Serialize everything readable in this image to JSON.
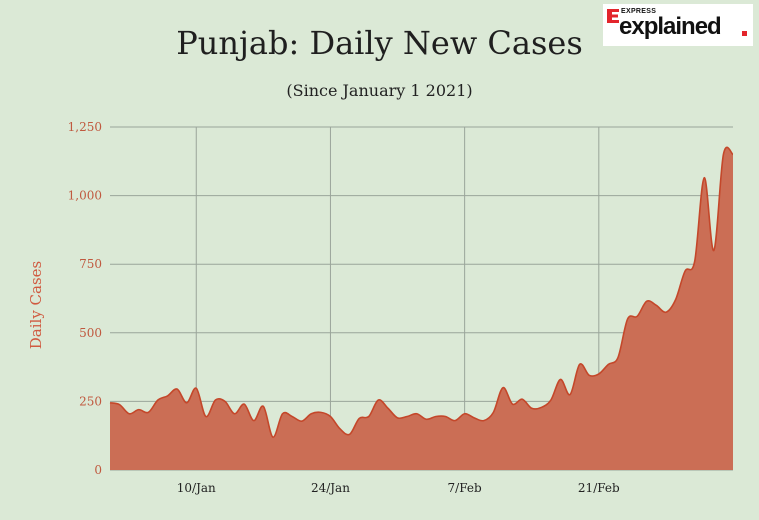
{
  "header": {
    "title": "Punjab: Daily New Cases",
    "subtitle": "(Since January 1 2021)"
  },
  "logo": {
    "superscript": "EXPRESS",
    "main": "explained",
    "text_color": "#111111",
    "dot_color": "#e3252c"
  },
  "colors": {
    "background": "#dbe9d6",
    "fill": "#cb6e55",
    "line": "#c4472a",
    "grid": "#9aa59a",
    "y_tick_label": "#c0593f",
    "y_axis_label": "#d05a40",
    "x_tick_label": "#222222"
  },
  "chart_data": {
    "type": "area",
    "ylabel": "Daily Cases",
    "ylim": [
      0,
      1250
    ],
    "y_ticks": [
      0,
      250,
      500,
      750,
      1000,
      1250
    ],
    "y_tick_labels": [
      "0",
      "250",
      "500",
      "750",
      "1,000",
      "1,250"
    ],
    "x_ticks": [
      "10/Jan",
      "24/Jan",
      "7/Feb",
      "21/Feb"
    ],
    "x_tick_dates": [
      "2021-01-10",
      "2021-01-24",
      "2021-02-07",
      "2021-02-21"
    ],
    "xlim": [
      "2021-01-01",
      "2021-03-07"
    ],
    "grid": true,
    "series": [
      {
        "x": [
          "2021-01-01",
          "2021-01-02",
          "2021-01-03",
          "2021-01-04",
          "2021-01-05",
          "2021-01-06",
          "2021-01-07",
          "2021-01-08",
          "2021-01-09",
          "2021-01-10",
          "2021-01-11",
          "2021-01-12",
          "2021-01-13",
          "2021-01-14",
          "2021-01-15",
          "2021-01-16",
          "2021-01-17",
          "2021-01-18",
          "2021-01-19",
          "2021-01-20",
          "2021-01-21",
          "2021-01-22",
          "2021-01-23",
          "2021-01-24",
          "2021-01-25",
          "2021-01-26",
          "2021-01-27",
          "2021-01-28",
          "2021-01-29",
          "2021-01-30",
          "2021-01-31",
          "2021-02-01",
          "2021-02-02",
          "2021-02-03",
          "2021-02-04",
          "2021-02-05",
          "2021-02-06",
          "2021-02-07",
          "2021-02-08",
          "2021-02-09",
          "2021-02-10",
          "2021-02-11",
          "2021-02-12",
          "2021-02-13",
          "2021-02-14",
          "2021-02-15",
          "2021-02-16",
          "2021-02-17",
          "2021-02-18",
          "2021-02-19",
          "2021-02-20",
          "2021-02-21",
          "2021-02-22",
          "2021-02-23",
          "2021-02-24",
          "2021-02-25",
          "2021-02-26",
          "2021-02-27",
          "2021-02-28",
          "2021-03-01",
          "2021-03-02",
          "2021-03-03",
          "2021-03-04",
          "2021-03-05",
          "2021-03-06",
          "2021-03-07"
        ],
        "values": [
          245,
          238,
          205,
          220,
          210,
          255,
          270,
          295,
          245,
          298,
          195,
          255,
          250,
          205,
          240,
          180,
          232,
          120,
          205,
          195,
          178,
          205,
          210,
          195,
          150,
          130,
          188,
          195,
          255,
          225,
          190,
          195,
          205,
          185,
          195,
          195,
          180,
          205,
          190,
          180,
          210,
          300,
          240,
          258,
          225,
          228,
          255,
          330,
          275,
          385,
          345,
          350,
          385,
          410,
          550,
          560,
          615,
          600,
          575,
          620,
          725,
          760,
          1065,
          800,
          1150,
          1150
        ]
      }
    ]
  }
}
